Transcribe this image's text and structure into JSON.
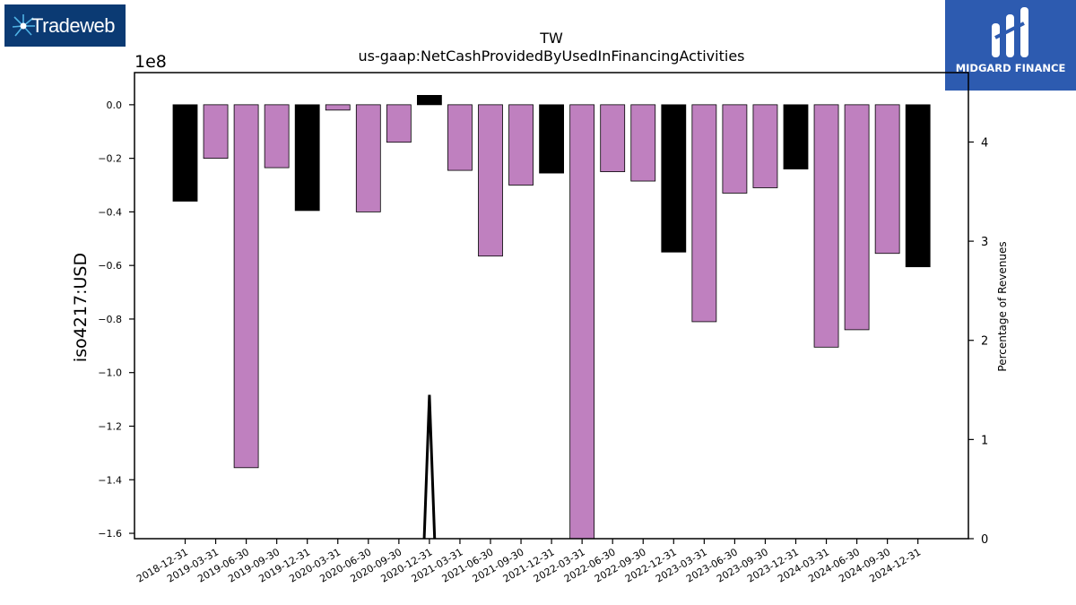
{
  "logos": {
    "left": {
      "text": "Tradeweb",
      "color": "#0b3a73"
    },
    "right": {
      "text": "MIDGARD FINANCE",
      "color": "#2d5bb0"
    }
  },
  "chart_data": {
    "type": "bar",
    "title": "TW",
    "subtitle": "us-gaap:NetCashProvidedByUsedInFinancingActivities",
    "ylabel": "iso4217:USD",
    "y_offset_label": "1e8",
    "y2label": "Percentage of Revenues",
    "categories": [
      "2018-12-31",
      "2019-03-31",
      "2019-06-30",
      "2019-09-30",
      "2019-12-31",
      "2020-03-31",
      "2020-06-30",
      "2020-09-30",
      "2020-12-31",
      "2021-03-31",
      "2021-06-30",
      "2021-09-30",
      "2021-12-31",
      "2022-03-31",
      "2022-06-30",
      "2022-09-30",
      "2022-12-31",
      "2023-03-31",
      "2023-06-30",
      "2023-09-30",
      "2023-12-31",
      "2024-03-31",
      "2024-06-30",
      "2024-09-30",
      "2024-12-31"
    ],
    "values": [
      -0.36,
      -0.2,
      -1.355,
      -0.235,
      -0.395,
      -0.02,
      -0.4,
      -0.14,
      0.035,
      -0.245,
      -0.565,
      -0.3,
      -0.255,
      -1.63,
      -0.25,
      -0.285,
      -0.55,
      -0.81,
      -0.33,
      -0.31,
      -0.24,
      -0.905,
      -0.84,
      -0.555,
      -0.605
    ],
    "bar_colors": [
      "#000000",
      "#bf80bf",
      "#bf80bf",
      "#bf80bf",
      "#000000",
      "#bf80bf",
      "#bf80bf",
      "#bf80bf",
      "#000000",
      "#bf80bf",
      "#bf80bf",
      "#bf80bf",
      "#000000",
      "#bf80bf",
      "#bf80bf",
      "#bf80bf",
      "#000000",
      "#bf80bf",
      "#bf80bf",
      "#bf80bf",
      "#000000",
      "#bf80bf",
      "#bf80bf",
      "#bf80bf",
      "#000000"
    ],
    "ylim": [
      -1.62,
      0.12
    ],
    "yticks": [
      "0.0",
      "−0.2",
      "−0.4",
      "−0.6",
      "−0.8",
      "−1.0",
      "−1.2",
      "−1.4",
      "−1.6"
    ],
    "ytick_values": [
      0,
      -0.2,
      -0.4,
      -0.6,
      -0.8,
      -1.0,
      -1.2,
      -1.4,
      -1.6
    ],
    "y2lim": [
      0,
      4.7
    ],
    "y2ticks": [
      "0",
      "1",
      "2",
      "3",
      "4"
    ],
    "y2tick_values": [
      0,
      1,
      2,
      3,
      4
    ],
    "line_series": {
      "name": "",
      "x": [
        "2020-12-31"
      ],
      "values": [
        1.45
      ],
      "color": "#000000"
    },
    "grid": false
  }
}
